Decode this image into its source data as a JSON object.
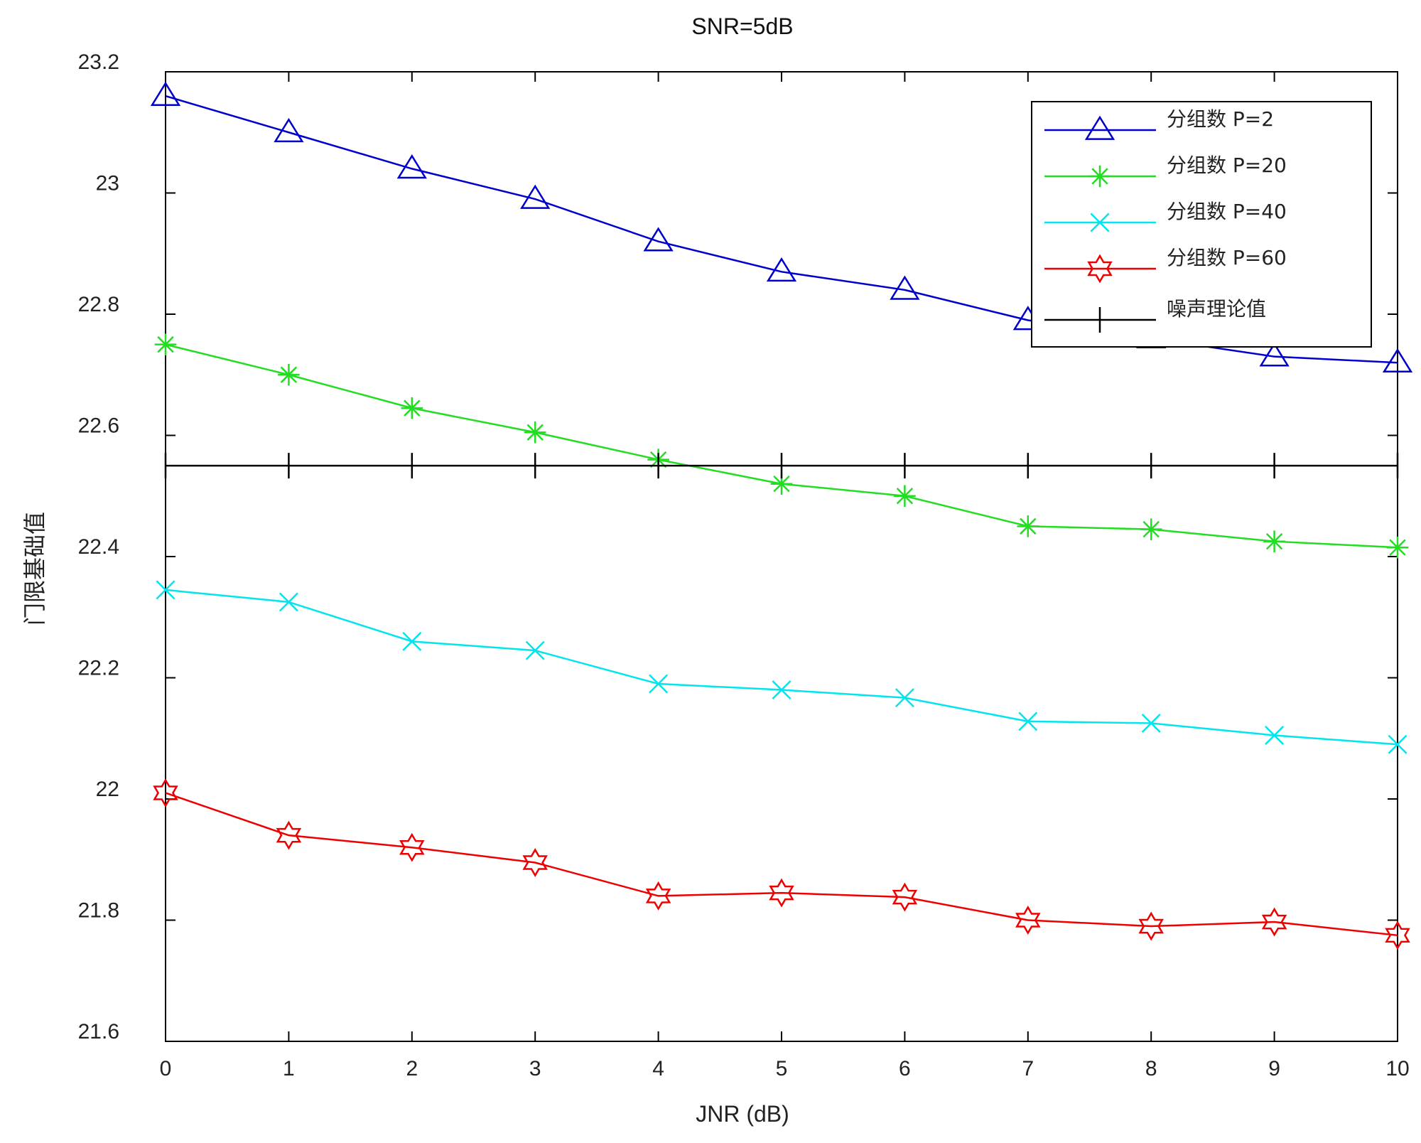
{
  "chart_data": {
    "type": "line",
    "title": "SNR=5dB",
    "xlabel": "JNR (dB)",
    "ylabel": "门限基础值",
    "xlim": [
      0,
      10
    ],
    "ylim": [
      21.6,
      23.2
    ],
    "x": [
      0,
      1,
      2,
      3,
      4,
      5,
      6,
      7,
      8,
      9,
      10
    ],
    "x_ticks": [
      "0",
      "1",
      "2",
      "3",
      "4",
      "5",
      "6",
      "7",
      "8",
      "9",
      "10"
    ],
    "y_ticks": [
      "21.6",
      "21.8",
      "22",
      "22.2",
      "22.4",
      "22.6",
      "22.8",
      "23",
      "23.2"
    ],
    "y_tick_values": [
      21.6,
      21.8,
      22.0,
      22.2,
      22.4,
      22.6,
      22.8,
      23.0,
      23.2
    ],
    "grid": false,
    "legend_position": "top-right",
    "series": [
      {
        "name": "分组数 P=2",
        "color": "#0000cc",
        "marker": "triangle",
        "values": [
          23.16,
          23.1,
          23.04,
          22.99,
          22.92,
          22.87,
          22.84,
          22.79,
          22.76,
          22.73,
          22.72
        ]
      },
      {
        "name": "分组数 P=20",
        "color": "#22dd22",
        "marker": "asterisk",
        "values": [
          22.75,
          22.7,
          22.645,
          22.605,
          22.56,
          22.52,
          22.5,
          22.45,
          22.445,
          22.425,
          22.415
        ]
      },
      {
        "name": "分组数 P=40",
        "color": "#00e5ee",
        "marker": "x",
        "values": [
          22.345,
          22.325,
          22.26,
          22.245,
          22.19,
          22.18,
          22.167,
          22.128,
          22.125,
          22.105,
          22.09
        ]
      },
      {
        "name": "分组数 P=60",
        "color": "#ee0000",
        "marker": "hexagram",
        "values": [
          22.01,
          21.94,
          21.92,
          21.895,
          21.84,
          21.845,
          21.838,
          21.8,
          21.79,
          21.797,
          21.775
        ]
      },
      {
        "name": "噪声理论值",
        "color": "#000000",
        "marker": "plus",
        "values": [
          22.55,
          22.55,
          22.55,
          22.55,
          22.55,
          22.55,
          22.55,
          22.55,
          22.55,
          22.55,
          22.55
        ]
      }
    ]
  }
}
